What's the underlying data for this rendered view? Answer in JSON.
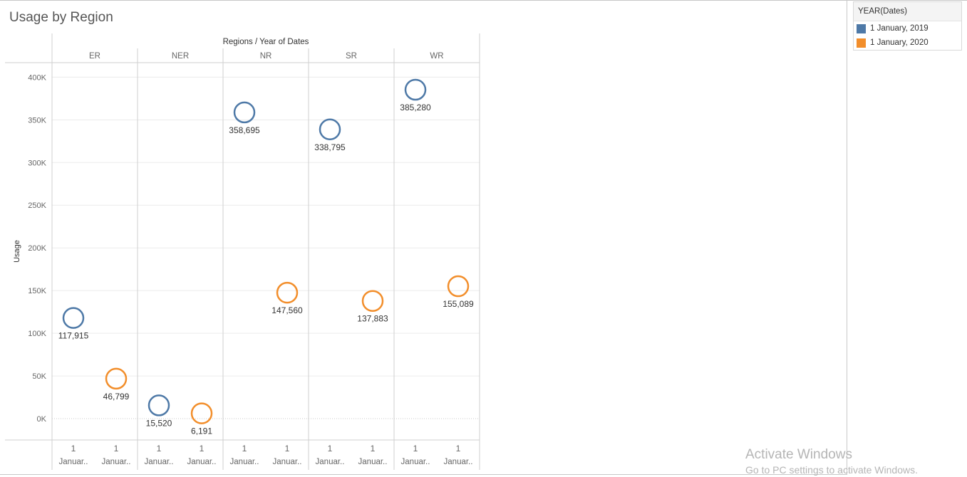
{
  "title": "Usage by Region",
  "legend": {
    "title": "YEAR(Dates)",
    "items": [
      {
        "label": "1 January, 2019",
        "color": "#4e79a7"
      },
      {
        "label": "1 January, 2020",
        "color": "#f28e2b"
      }
    ]
  },
  "watermark": {
    "line1": "Activate Windows",
    "line2": "Go to PC settings to activate Windows."
  },
  "chart_data": {
    "type": "scatter",
    "title": "Usage by Region",
    "column_header": "Regions  /  Year of Dates",
    "ylabel": "Usage",
    "ylim": [
      -25000,
      417000
    ],
    "yticks": [
      0,
      50000,
      100000,
      150000,
      200000,
      250000,
      300000,
      350000,
      400000
    ],
    "ytick_labels": [
      "0K",
      "50K",
      "100K",
      "150K",
      "200K",
      "250K",
      "300K",
      "350K",
      "400K"
    ],
    "regions": [
      "ER",
      "NER",
      "NR",
      "SR",
      "WR"
    ],
    "x_tick_top": "1",
    "x_tick_bottom": "Januar..",
    "grid": true,
    "legend_position": "right",
    "marker": "open-circle",
    "series": [
      {
        "name": "1 January, 2019",
        "color": "#4e79a7",
        "values": [
          117915,
          15520,
          358695,
          338795,
          385280
        ],
        "labels": [
          "117,915",
          "15,520",
          "358,695",
          "338,795",
          "385,280"
        ]
      },
      {
        "name": "1 January, 2020",
        "color": "#f28e2b",
        "values": [
          46799,
          6191,
          147560,
          137883,
          155089
        ],
        "labels": [
          "46,799",
          "6,191",
          "147,560",
          "137,883",
          "155,089"
        ]
      }
    ]
  }
}
